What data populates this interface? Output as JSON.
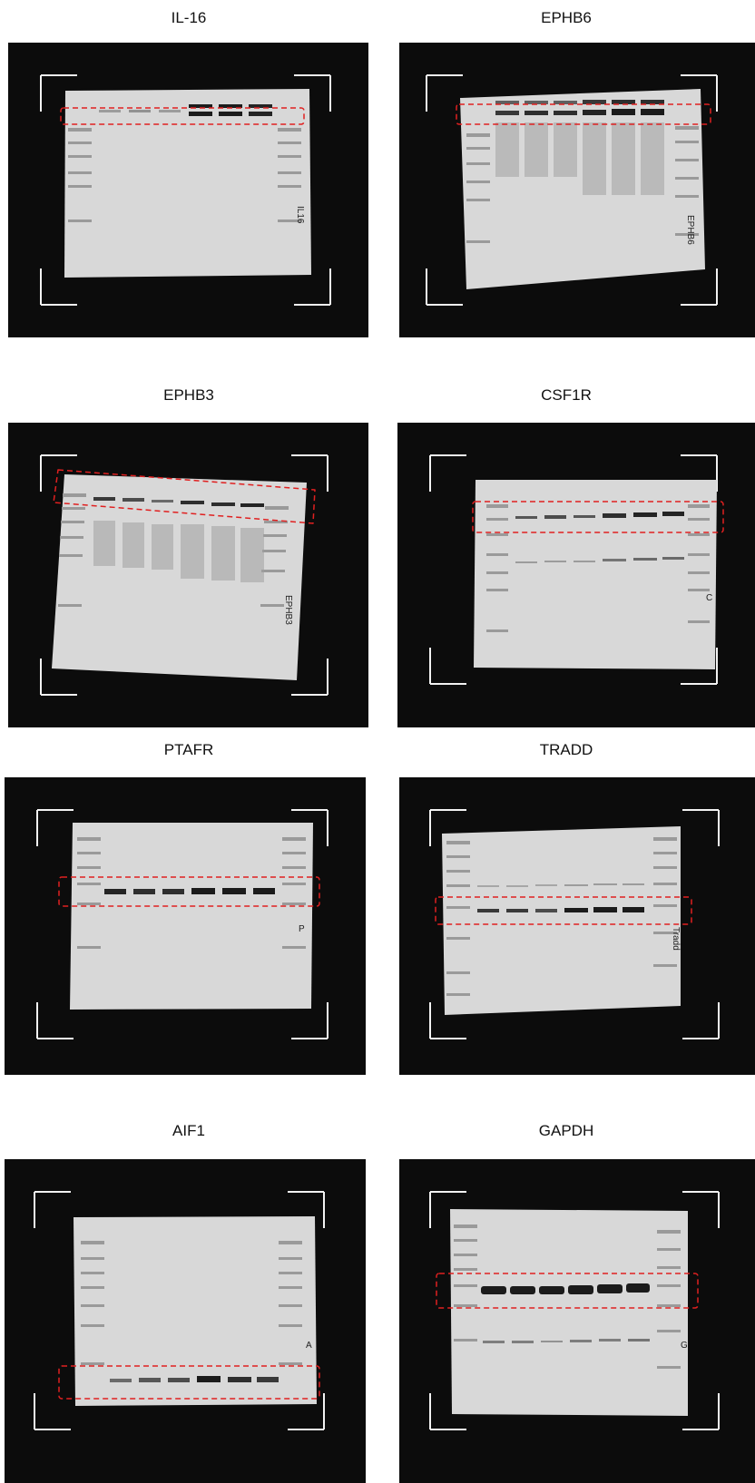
{
  "panels": [
    {
      "label": "IL-16",
      "note": "IL16",
      "band_intensity": [
        0.3,
        0.35,
        0.3,
        0.95,
        0.95,
        0.9
      ],
      "highlight": "upper-band"
    },
    {
      "label": "EPHB6",
      "note": "EPHB6",
      "band_intensity": [
        0.8,
        0.85,
        0.85,
        0.9,
        0.95,
        0.95
      ],
      "highlight": "upper-band"
    },
    {
      "label": "EPHB3",
      "note": "EPHB3",
      "band_intensity": [
        0.8,
        0.7,
        0.55,
        0.85,
        0.85,
        0.9
      ],
      "highlight": "upper-band"
    },
    {
      "label": "CSF1R",
      "note": "C",
      "band_intensity": [
        0.65,
        0.7,
        0.65,
        0.85,
        0.9,
        0.9
      ],
      "highlight": "upper-band"
    },
    {
      "label": "PTAFR",
      "note": "P",
      "band_intensity": [
        0.9,
        0.85,
        0.85,
        0.95,
        0.95,
        0.95
      ],
      "highlight": "middle-band"
    },
    {
      "label": "TRADD",
      "note": "Tradd",
      "band_intensity": [
        0.8,
        0.8,
        0.7,
        0.95,
        0.95,
        0.95
      ],
      "highlight": "middle-band"
    },
    {
      "label": "AIF1",
      "note": "A",
      "band_intensity": [
        0.55,
        0.65,
        0.7,
        0.95,
        0.85,
        0.8
      ],
      "highlight": "lower-band"
    },
    {
      "label": "GAPDH",
      "note": "G",
      "band_intensity": [
        0.95,
        0.95,
        0.95,
        0.95,
        0.95,
        0.95
      ],
      "highlight": "middle-band"
    }
  ],
  "colors": {
    "background": "#0c0c0c",
    "membrane": "#dcdcdc",
    "band": "#111111",
    "highlight_box": "#e02020",
    "corner_marks": "#f2f2f2"
  }
}
